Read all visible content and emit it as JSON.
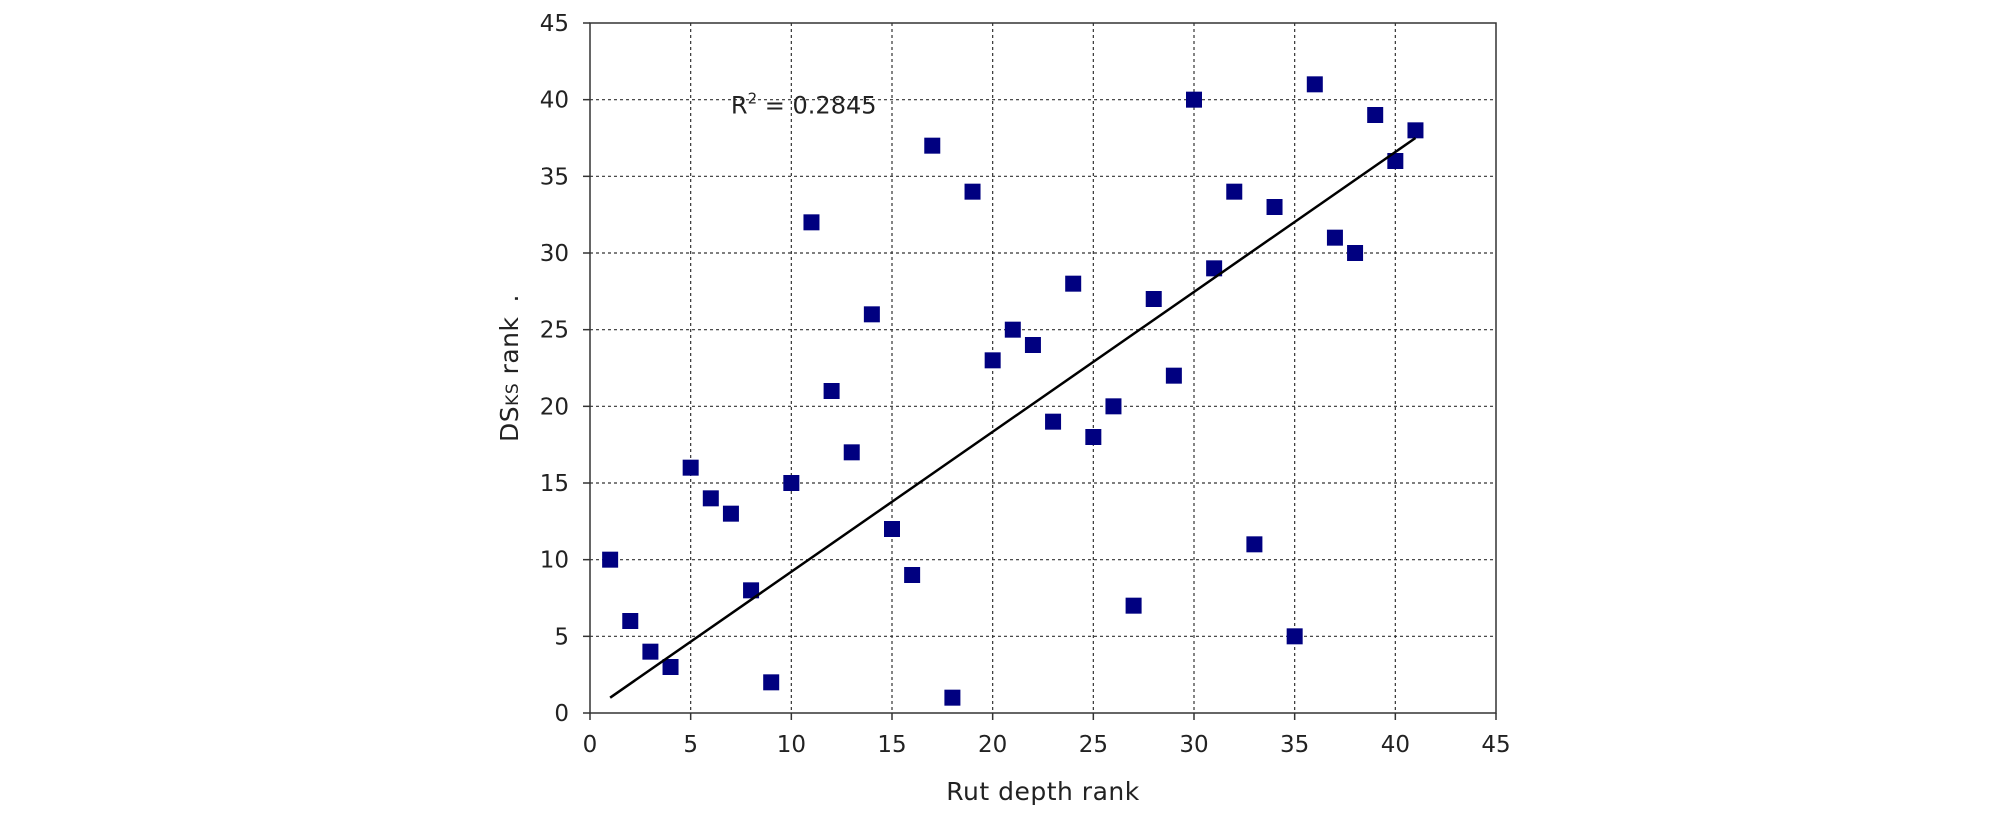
{
  "chart_data": {
    "type": "scatter",
    "title": "",
    "xlabel": "Rut depth rank",
    "ylabel": "DSKS rank",
    "ylabel_main": "DS",
    "ylabel_sub": "KS",
    "ylabel_rest": " rank",
    "ylabel_dot": ".",
    "xlim": [
      0,
      45
    ],
    "ylim": [
      0,
      45
    ],
    "xticks": [
      0,
      5,
      10,
      15,
      20,
      25,
      30,
      35,
      40,
      45
    ],
    "yticks": [
      0,
      5,
      10,
      15,
      20,
      25,
      30,
      35,
      40,
      45
    ],
    "grid": true,
    "marker_color": "#000080",
    "trendline": {
      "x1": 1,
      "y1": 1,
      "x2": 41,
      "y2": 37.5
    },
    "annotation": {
      "prefix": "R",
      "sup": "2",
      "suffix": " = 0.2845"
    },
    "points": [
      {
        "x": 1,
        "y": 10
      },
      {
        "x": 2,
        "y": 6
      },
      {
        "x": 3,
        "y": 4
      },
      {
        "x": 4,
        "y": 3
      },
      {
        "x": 5,
        "y": 16
      },
      {
        "x": 6,
        "y": 14
      },
      {
        "x": 7,
        "y": 13
      },
      {
        "x": 8,
        "y": 8
      },
      {
        "x": 9,
        "y": 2
      },
      {
        "x": 10,
        "y": 15
      },
      {
        "x": 11,
        "y": 32
      },
      {
        "x": 12,
        "y": 21
      },
      {
        "x": 13,
        "y": 17
      },
      {
        "x": 14,
        "y": 26
      },
      {
        "x": 15,
        "y": 12
      },
      {
        "x": 16,
        "y": 9
      },
      {
        "x": 17,
        "y": 37
      },
      {
        "x": 18,
        "y": 1
      },
      {
        "x": 19,
        "y": 34
      },
      {
        "x": 20,
        "y": 23
      },
      {
        "x": 21,
        "y": 25
      },
      {
        "x": 22,
        "y": 24
      },
      {
        "x": 23,
        "y": 19
      },
      {
        "x": 24,
        "y": 28
      },
      {
        "x": 25,
        "y": 18
      },
      {
        "x": 26,
        "y": 20
      },
      {
        "x": 27,
        "y": 7
      },
      {
        "x": 28,
        "y": 27
      },
      {
        "x": 29,
        "y": 22
      },
      {
        "x": 30,
        "y": 40
      },
      {
        "x": 31,
        "y": 29
      },
      {
        "x": 32,
        "y": 34
      },
      {
        "x": 33,
        "y": 11
      },
      {
        "x": 34,
        "y": 33
      },
      {
        "x": 35,
        "y": 5
      },
      {
        "x": 36,
        "y": 41
      },
      {
        "x": 37,
        "y": 31
      },
      {
        "x": 38,
        "y": 30
      },
      {
        "x": 39,
        "y": 39
      },
      {
        "x": 40,
        "y": 36
      },
      {
        "x": 41,
        "y": 38
      }
    ]
  }
}
